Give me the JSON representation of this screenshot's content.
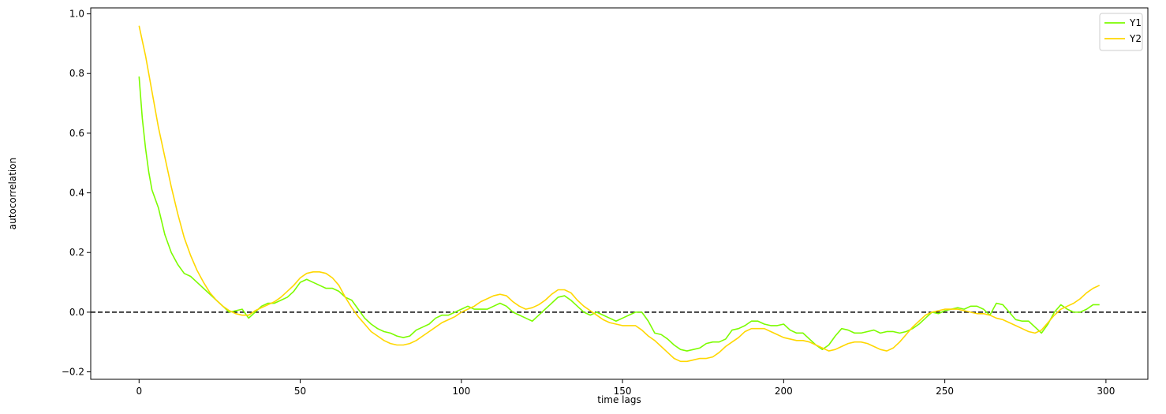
{
  "chart_data": {
    "type": "line",
    "title": "",
    "xlabel": "time lags",
    "ylabel": "autocorrelation",
    "xlim": [
      -15,
      313
    ],
    "ylim": [
      -0.225,
      1.02
    ],
    "xticks": [
      0,
      50,
      100,
      150,
      200,
      250,
      300
    ],
    "xtick_labels": [
      "0",
      "50",
      "100",
      "150",
      "200",
      "250",
      "300"
    ],
    "yticks": [
      -0.2,
      0.0,
      0.2,
      0.4,
      0.6,
      0.8,
      1.0
    ],
    "ytick_labels": [
      "−0.2",
      "0.0",
      "0.2",
      "0.4",
      "0.6",
      "0.8",
      "1.0"
    ],
    "grid": false,
    "legend_position": "top-right",
    "reference_line": {
      "y": 0.0,
      "style": "dashed",
      "color": "#000000"
    },
    "series": [
      {
        "name": "Y1",
        "color": "#7cfc00",
        "points": [
          [
            0,
            0.79
          ],
          [
            1,
            0.65
          ],
          [
            2,
            0.55
          ],
          [
            3,
            0.47
          ],
          [
            4,
            0.41
          ],
          [
            6,
            0.35
          ],
          [
            8,
            0.26
          ],
          [
            10,
            0.2
          ],
          [
            12,
            0.16
          ],
          [
            14,
            0.13
          ],
          [
            16,
            0.12
          ],
          [
            18,
            0.1
          ],
          [
            20,
            0.08
          ],
          [
            22,
            0.06
          ],
          [
            24,
            0.04
          ],
          [
            26,
            0.02
          ],
          [
            28,
            0.0
          ],
          [
            30,
            0.005
          ],
          [
            32,
            0.01
          ],
          [
            34,
            -0.02
          ],
          [
            36,
            0.0
          ],
          [
            38,
            0.02
          ],
          [
            40,
            0.03
          ],
          [
            42,
            0.03
          ],
          [
            44,
            0.04
          ],
          [
            46,
            0.05
          ],
          [
            48,
            0.07
          ],
          [
            50,
            0.1
          ],
          [
            52,
            0.11
          ],
          [
            54,
            0.1
          ],
          [
            56,
            0.09
          ],
          [
            58,
            0.08
          ],
          [
            60,
            0.08
          ],
          [
            62,
            0.07
          ],
          [
            64,
            0.05
          ],
          [
            66,
            0.04
          ],
          [
            68,
            0.01
          ],
          [
            70,
            -0.02
          ],
          [
            72,
            -0.04
          ],
          [
            74,
            -0.055
          ],
          [
            76,
            -0.065
          ],
          [
            78,
            -0.07
          ],
          [
            80,
            -0.08
          ],
          [
            82,
            -0.085
          ],
          [
            84,
            -0.08
          ],
          [
            86,
            -0.06
          ],
          [
            88,
            -0.05
          ],
          [
            90,
            -0.04
          ],
          [
            92,
            -0.02
          ],
          [
            94,
            -0.01
          ],
          [
            96,
            -0.01
          ],
          [
            98,
            0.0
          ],
          [
            100,
            0.01
          ],
          [
            102,
            0.02
          ],
          [
            104,
            0.01
          ],
          [
            106,
            0.01
          ],
          [
            108,
            0.01
          ],
          [
            110,
            0.02
          ],
          [
            112,
            0.03
          ],
          [
            114,
            0.02
          ],
          [
            116,
            0.0
          ],
          [
            118,
            -0.01
          ],
          [
            120,
            -0.02
          ],
          [
            122,
            -0.03
          ],
          [
            124,
            -0.01
          ],
          [
            126,
            0.01
          ],
          [
            128,
            0.03
          ],
          [
            130,
            0.05
          ],
          [
            132,
            0.055
          ],
          [
            134,
            0.04
          ],
          [
            136,
            0.02
          ],
          [
            138,
            0.0
          ],
          [
            140,
            -0.01
          ],
          [
            142,
            0.0
          ],
          [
            144,
            -0.01
          ],
          [
            146,
            -0.02
          ],
          [
            148,
            -0.03
          ],
          [
            150,
            -0.02
          ],
          [
            152,
            -0.01
          ],
          [
            154,
            0.0
          ],
          [
            156,
            0.0
          ],
          [
            158,
            -0.03
          ],
          [
            160,
            -0.07
          ],
          [
            162,
            -0.075
          ],
          [
            164,
            -0.09
          ],
          [
            166,
            -0.11
          ],
          [
            168,
            -0.125
          ],
          [
            170,
            -0.13
          ],
          [
            172,
            -0.125
          ],
          [
            174,
            -0.12
          ],
          [
            176,
            -0.105
          ],
          [
            178,
            -0.1
          ],
          [
            180,
            -0.1
          ],
          [
            182,
            -0.09
          ],
          [
            184,
            -0.06
          ],
          [
            186,
            -0.055
          ],
          [
            188,
            -0.045
          ],
          [
            190,
            -0.03
          ],
          [
            192,
            -0.03
          ],
          [
            194,
            -0.04
          ],
          [
            196,
            -0.045
          ],
          [
            198,
            -0.045
          ],
          [
            200,
            -0.04
          ],
          [
            202,
            -0.06
          ],
          [
            204,
            -0.07
          ],
          [
            206,
            -0.07
          ],
          [
            208,
            -0.09
          ],
          [
            210,
            -0.11
          ],
          [
            212,
            -0.125
          ],
          [
            214,
            -0.11
          ],
          [
            216,
            -0.08
          ],
          [
            218,
            -0.055
          ],
          [
            220,
            -0.06
          ],
          [
            222,
            -0.07
          ],
          [
            224,
            -0.07
          ],
          [
            226,
            -0.065
          ],
          [
            228,
            -0.06
          ],
          [
            230,
            -0.07
          ],
          [
            232,
            -0.065
          ],
          [
            234,
            -0.065
          ],
          [
            236,
            -0.07
          ],
          [
            238,
            -0.065
          ],
          [
            240,
            -0.055
          ],
          [
            242,
            -0.04
          ],
          [
            244,
            -0.02
          ],
          [
            246,
            0.0
          ],
          [
            248,
            -0.005
          ],
          [
            250,
            0.005
          ],
          [
            252,
            0.01
          ],
          [
            254,
            0.015
          ],
          [
            256,
            0.01
          ],
          [
            258,
            0.02
          ],
          [
            260,
            0.02
          ],
          [
            262,
            0.01
          ],
          [
            264,
            -0.01
          ],
          [
            266,
            0.03
          ],
          [
            268,
            0.025
          ],
          [
            270,
            0.0
          ],
          [
            272,
            -0.025
          ],
          [
            274,
            -0.03
          ],
          [
            276,
            -0.03
          ],
          [
            278,
            -0.05
          ],
          [
            280,
            -0.07
          ],
          [
            282,
            -0.04
          ],
          [
            284,
            0.0
          ],
          [
            286,
            0.025
          ],
          [
            288,
            0.01
          ],
          [
            290,
            0.0
          ],
          [
            292,
            0.0
          ],
          [
            294,
            0.01
          ],
          [
            296,
            0.025
          ],
          [
            298,
            0.025
          ]
        ]
      },
      {
        "name": "Y2",
        "color": "#ffd700",
        "points": [
          [
            0,
            0.96
          ],
          [
            2,
            0.86
          ],
          [
            4,
            0.74
          ],
          [
            6,
            0.62
          ],
          [
            8,
            0.52
          ],
          [
            10,
            0.42
          ],
          [
            12,
            0.33
          ],
          [
            14,
            0.25
          ],
          [
            16,
            0.19
          ],
          [
            18,
            0.14
          ],
          [
            20,
            0.1
          ],
          [
            22,
            0.065
          ],
          [
            24,
            0.04
          ],
          [
            26,
            0.02
          ],
          [
            28,
            0.005
          ],
          [
            30,
            -0.005
          ],
          [
            32,
            -0.01
          ],
          [
            34,
            -0.01
          ],
          [
            36,
            0.005
          ],
          [
            38,
            0.015
          ],
          [
            40,
            0.025
          ],
          [
            42,
            0.035
          ],
          [
            44,
            0.05
          ],
          [
            46,
            0.07
          ],
          [
            48,
            0.09
          ],
          [
            50,
            0.115
          ],
          [
            52,
            0.13
          ],
          [
            54,
            0.135
          ],
          [
            56,
            0.135
          ],
          [
            58,
            0.13
          ],
          [
            60,
            0.115
          ],
          [
            62,
            0.09
          ],
          [
            64,
            0.05
          ],
          [
            66,
            0.015
          ],
          [
            68,
            -0.015
          ],
          [
            70,
            -0.04
          ],
          [
            72,
            -0.065
          ],
          [
            74,
            -0.08
          ],
          [
            76,
            -0.095
          ],
          [
            78,
            -0.105
          ],
          [
            80,
            -0.11
          ],
          [
            82,
            -0.11
          ],
          [
            84,
            -0.105
          ],
          [
            86,
            -0.095
          ],
          [
            88,
            -0.08
          ],
          [
            90,
            -0.065
          ],
          [
            92,
            -0.05
          ],
          [
            94,
            -0.035
          ],
          [
            96,
            -0.025
          ],
          [
            98,
            -0.015
          ],
          [
            100,
            0.0
          ],
          [
            102,
            0.01
          ],
          [
            104,
            0.02
          ],
          [
            106,
            0.035
          ],
          [
            108,
            0.045
          ],
          [
            110,
            0.055
          ],
          [
            112,
            0.06
          ],
          [
            114,
            0.055
          ],
          [
            116,
            0.035
          ],
          [
            118,
            0.02
          ],
          [
            120,
            0.01
          ],
          [
            122,
            0.015
          ],
          [
            124,
            0.025
          ],
          [
            126,
            0.04
          ],
          [
            128,
            0.06
          ],
          [
            130,
            0.075
          ],
          [
            132,
            0.075
          ],
          [
            134,
            0.065
          ],
          [
            136,
            0.04
          ],
          [
            138,
            0.02
          ],
          [
            140,
            0.005
          ],
          [
            142,
            -0.01
          ],
          [
            144,
            -0.025
          ],
          [
            146,
            -0.035
          ],
          [
            148,
            -0.04
          ],
          [
            150,
            -0.045
          ],
          [
            152,
            -0.045
          ],
          [
            154,
            -0.045
          ],
          [
            156,
            -0.06
          ],
          [
            158,
            -0.08
          ],
          [
            160,
            -0.095
          ],
          [
            162,
            -0.115
          ],
          [
            164,
            -0.135
          ],
          [
            166,
            -0.155
          ],
          [
            168,
            -0.165
          ],
          [
            170,
            -0.165
          ],
          [
            172,
            -0.16
          ],
          [
            174,
            -0.155
          ],
          [
            176,
            -0.155
          ],
          [
            178,
            -0.15
          ],
          [
            180,
            -0.135
          ],
          [
            182,
            -0.115
          ],
          [
            184,
            -0.1
          ],
          [
            186,
            -0.085
          ],
          [
            188,
            -0.065
          ],
          [
            190,
            -0.055
          ],
          [
            192,
            -0.055
          ],
          [
            194,
            -0.055
          ],
          [
            196,
            -0.065
          ],
          [
            198,
            -0.075
          ],
          [
            200,
            -0.085
          ],
          [
            202,
            -0.09
          ],
          [
            204,
            -0.095
          ],
          [
            206,
            -0.095
          ],
          [
            208,
            -0.1
          ],
          [
            210,
            -0.11
          ],
          [
            212,
            -0.12
          ],
          [
            214,
            -0.13
          ],
          [
            216,
            -0.125
          ],
          [
            218,
            -0.115
          ],
          [
            220,
            -0.105
          ],
          [
            222,
            -0.1
          ],
          [
            224,
            -0.1
          ],
          [
            226,
            -0.105
          ],
          [
            228,
            -0.115
          ],
          [
            230,
            -0.125
          ],
          [
            232,
            -0.13
          ],
          [
            234,
            -0.12
          ],
          [
            236,
            -0.1
          ],
          [
            238,
            -0.075
          ],
          [
            240,
            -0.05
          ],
          [
            242,
            -0.03
          ],
          [
            244,
            -0.01
          ],
          [
            246,
            0.0
          ],
          [
            248,
            0.005
          ],
          [
            250,
            0.01
          ],
          [
            252,
            0.01
          ],
          [
            254,
            0.01
          ],
          [
            256,
            0.005
          ],
          [
            258,
            0.0
          ],
          [
            260,
            -0.005
          ],
          [
            262,
            -0.005
          ],
          [
            264,
            -0.01
          ],
          [
            266,
            -0.02
          ],
          [
            268,
            -0.025
          ],
          [
            270,
            -0.035
          ],
          [
            272,
            -0.045
          ],
          [
            274,
            -0.055
          ],
          [
            276,
            -0.065
          ],
          [
            278,
            -0.07
          ],
          [
            280,
            -0.06
          ],
          [
            282,
            -0.035
          ],
          [
            284,
            -0.01
          ],
          [
            286,
            0.01
          ],
          [
            288,
            0.02
          ],
          [
            290,
            0.03
          ],
          [
            292,
            0.045
          ],
          [
            294,
            0.065
          ],
          [
            296,
            0.08
          ],
          [
            298,
            0.09
          ]
        ]
      }
    ]
  }
}
